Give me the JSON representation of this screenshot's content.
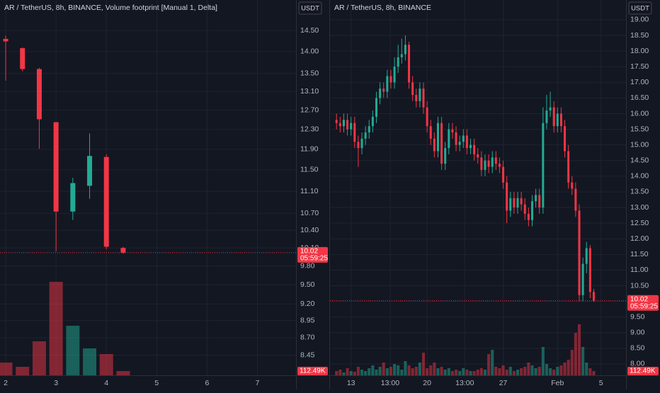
{
  "chart_data": [
    {
      "type": "candlestick",
      "title": "AR / TetherUS, 8h, BINANCE, Volume footprint [Manual 1, Delta]",
      "currency": "USDT",
      "logscale": true,
      "grid": true,
      "up_color": "#22ab94",
      "down_color": "#f23645",
      "xlim": [
        -0.34,
        17.3
      ],
      "xticks": [
        {
          "value": 0,
          "label": "2"
        },
        {
          "value": 3,
          "label": "3"
        },
        {
          "value": 6,
          "label": "4"
        },
        {
          "value": 9,
          "label": "5"
        },
        {
          "value": 12,
          "label": "6"
        },
        {
          "value": 15,
          "label": "7"
        }
      ],
      "ylim": [
        8.22,
        14.9
      ],
      "yticks": [
        {
          "value": 14.5,
          "label": "14.50"
        },
        {
          "value": 14,
          "label": "14.00"
        },
        {
          "value": 13.5,
          "label": "13.50"
        },
        {
          "value": 13.1,
          "label": "13.10"
        },
        {
          "value": 12.7,
          "label": "12.70"
        },
        {
          "value": 12.3,
          "label": "12.30"
        },
        {
          "value": 11.9,
          "label": "11.90"
        },
        {
          "value": 11.5,
          "label": "11.50"
        },
        {
          "value": 11.1,
          "label": "11.10"
        },
        {
          "value": 10.7,
          "label": "10.70"
        },
        {
          "value": 10.4,
          "label": "10.40"
        },
        {
          "value": 10.1,
          "label": "10.10"
        },
        {
          "value": 9.8,
          "label": "9.80"
        },
        {
          "value": 9.5,
          "label": "9.50"
        },
        {
          "value": 9.2,
          "label": "9.20"
        },
        {
          "value": 8.95,
          "label": "8.95"
        },
        {
          "value": 8.7,
          "label": "8.70"
        },
        {
          "value": 8.45,
          "label": "8.45"
        }
      ],
      "open": [
        14.3,
        14.08,
        13.6,
        12.45,
        10.73,
        11.2,
        11.75,
        10.1
      ],
      "high": [
        14.38,
        14.1,
        13.63,
        12.45,
        11.35,
        12.22,
        11.8,
        10.12
      ],
      "low": [
        13.34,
        13.55,
        11.91,
        10.04,
        10.58,
        10.96,
        10.08,
        10.0
      ],
      "close": [
        14.24,
        13.6,
        12.51,
        10.73,
        11.25,
        11.77,
        10.12,
        10.02
      ],
      "volume": [
        337,
        225,
        900,
        2475,
        1312,
        712,
        562,
        112.49
      ],
      "volume_ylim": [
        0,
        2625
      ],
      "volume_label": {
        "value": 112.49,
        "label": "112.49K"
      },
      "last_price": 10.02,
      "countdown": "05:59:25"
    },
    {
      "type": "candlestick",
      "title": "AR / TetherUS, 8h, BINANCE",
      "currency": "USDT",
      "logscale": false,
      "grid": true,
      "up_color": "#22ab94",
      "down_color": "#f23645",
      "xlim": [
        -1.8,
        79.9
      ],
      "xticks": [
        {
          "value": 4,
          "label": "13"
        },
        {
          "value": 14.8,
          "label": "13:00"
        },
        {
          "value": 25,
          "label": "20"
        },
        {
          "value": 35.4,
          "label": "13:00"
        },
        {
          "value": 46,
          "label": "27"
        },
        {
          "value": 61,
          "label": "Feb"
        },
        {
          "value": 73,
          "label": "5"
        }
      ],
      "ylim": [
        7.75,
        19.18
      ],
      "yticks": [
        {
          "value": 19,
          "label": "19.00"
        },
        {
          "value": 18.5,
          "label": "18.50"
        },
        {
          "value": 18,
          "label": "18.00"
        },
        {
          "value": 17.5,
          "label": "17.50"
        },
        {
          "value": 17,
          "label": "17.00"
        },
        {
          "value": 16.5,
          "label": "16.50"
        },
        {
          "value": 16,
          "label": "16.00"
        },
        {
          "value": 15.5,
          "label": "15.50"
        },
        {
          "value": 15,
          "label": "15.00"
        },
        {
          "value": 14.5,
          "label": "14.50"
        },
        {
          "value": 14,
          "label": "14.00"
        },
        {
          "value": 13.5,
          "label": "13.50"
        },
        {
          "value": 13,
          "label": "13.00"
        },
        {
          "value": 12.5,
          "label": "12.50"
        },
        {
          "value": 12,
          "label": "12.00"
        },
        {
          "value": 11.5,
          "label": "11.50"
        },
        {
          "value": 11,
          "label": "11.00"
        },
        {
          "value": 10.5,
          "label": "10.50"
        },
        {
          "value": 10,
          "label": "10.00"
        },
        {
          "value": 9.5,
          "label": "9.50"
        },
        {
          "value": 9,
          "label": "9.00"
        },
        {
          "value": 8.5,
          "label": "8.50"
        },
        {
          "value": 8,
          "label": "8.00"
        }
      ],
      "open": [
        15.8,
        15.7,
        15.6,
        15.8,
        15.5,
        15.7,
        15.1,
        14.9,
        15.2,
        15.4,
        15.6,
        15.9,
        16.5,
        16.8,
        16.7,
        17.2,
        17.0,
        17.5,
        17.8,
        17.9,
        18.2,
        17.0,
        16.6,
        16.4,
        16.8,
        16.2,
        15.6,
        15.2,
        14.8,
        15.7,
        14.4,
        14.9,
        15.5,
        15.4,
        15.0,
        15.1,
        15.3,
        14.9,
        15.0,
        14.7,
        14.6,
        14.2,
        14.5,
        14.3,
        14.6,
        14.4,
        14.3,
        13.8,
        12.9,
        13.3,
        13.0,
        13.3,
        13.1,
        12.8,
        12.6,
        13.2,
        13.4,
        13.0,
        15.7,
        16.1,
        16.2,
        15.6,
        16.0,
        15.6,
        14.8,
        13.8,
        13.6,
        12.9,
        10.2,
        11.2,
        11.7,
        10.3
      ],
      "high": [
        16.0,
        15.9,
        16.0,
        16.0,
        15.9,
        15.9,
        15.3,
        15.4,
        15.6,
        15.8,
        16.1,
        16.7,
        17.0,
        17.0,
        17.4,
        17.4,
        17.8,
        18.2,
        18.4,
        18.5,
        18.3,
        17.2,
        16.8,
        17.0,
        17.0,
        16.4,
        15.8,
        15.4,
        15.9,
        15.9,
        15.1,
        15.7,
        15.7,
        15.6,
        15.3,
        15.5,
        15.5,
        15.2,
        15.2,
        14.9,
        14.8,
        14.7,
        14.7,
        14.8,
        14.8,
        14.6,
        14.5,
        14.0,
        13.5,
        13.5,
        13.5,
        13.5,
        13.3,
        13.0,
        13.4,
        13.6,
        13.6,
        16.2,
        16.6,
        16.7,
        16.4,
        16.2,
        16.2,
        15.8,
        15.0,
        14.0,
        13.8,
        13.1,
        11.4,
        11.9,
        11.8,
        10.4
      ],
      "low": [
        15.5,
        15.4,
        15.4,
        15.3,
        15.3,
        14.9,
        14.3,
        14.7,
        15.0,
        15.2,
        15.4,
        15.7,
        16.3,
        16.5,
        16.5,
        16.8,
        16.8,
        17.3,
        17.6,
        17.7,
        16.8,
        16.4,
        16.2,
        16.2,
        16.0,
        15.4,
        15.0,
        14.6,
        14.6,
        14.2,
        14.2,
        14.7,
        15.2,
        14.8,
        14.8,
        14.9,
        14.7,
        14.7,
        14.5,
        14.4,
        14.0,
        14.0,
        14.1,
        14.1,
        14.2,
        14.1,
        13.6,
        12.5,
        12.7,
        12.8,
        12.8,
        12.9,
        12.6,
        12.4,
        12.4,
        13.0,
        12.8,
        12.8,
        15.5,
        15.9,
        15.4,
        15.4,
        15.4,
        14.6,
        13.6,
        13.4,
        12.7,
        10.0,
        10.0,
        10.9,
        10.1,
        9.98
      ],
      "close": [
        15.7,
        15.6,
        15.8,
        15.5,
        15.7,
        15.1,
        14.9,
        15.2,
        15.4,
        15.6,
        15.9,
        16.5,
        16.8,
        16.7,
        17.2,
        17.0,
        17.5,
        17.8,
        17.9,
        18.2,
        17.0,
        16.6,
        16.4,
        16.8,
        16.2,
        15.6,
        15.2,
        14.8,
        15.7,
        14.4,
        14.9,
        15.5,
        15.4,
        15.0,
        15.1,
        15.3,
        14.9,
        15.0,
        14.7,
        14.6,
        14.2,
        14.5,
        14.3,
        14.6,
        14.4,
        14.3,
        13.8,
        12.9,
        13.3,
        13.0,
        13.3,
        13.1,
        12.8,
        12.6,
        13.2,
        13.4,
        13.0,
        15.7,
        16.1,
        16.2,
        15.6,
        16.0,
        15.6,
        14.8,
        13.8,
        13.6,
        12.9,
        10.2,
        11.2,
        11.7,
        10.3,
        10.02
      ],
      "volume": [
        112.5,
        150,
        75,
        187.5,
        112.5,
        93.75,
        225,
        150,
        112.5,
        187.5,
        262.5,
        150,
        225,
        337.5,
        187.5,
        225,
        300,
        262.5,
        150,
        375,
        262.5,
        187.5,
        225,
        337.5,
        600,
        187.5,
        262.5,
        337.5,
        187.5,
        225,
        150,
        187.5,
        112.5,
        150,
        112.5,
        187.5,
        150,
        112.5,
        112.5,
        150,
        187.5,
        150,
        562.5,
        675,
        225,
        187.5,
        262.5,
        150,
        225,
        112.5,
        150,
        187.5,
        225,
        337.5,
        262.5,
        187.5,
        225,
        750,
        300,
        187.5,
        150,
        225,
        262.5,
        337.5,
        412.5,
        675,
        1125,
        1350,
        750,
        337.5,
        187.5,
        112.49
      ],
      "volume_ylim": [
        0,
        2625
      ],
      "volume_label": {
        "value": 112.49,
        "label": "112.49K"
      },
      "last_price": 10.02,
      "countdown": "05:59:25"
    }
  ]
}
